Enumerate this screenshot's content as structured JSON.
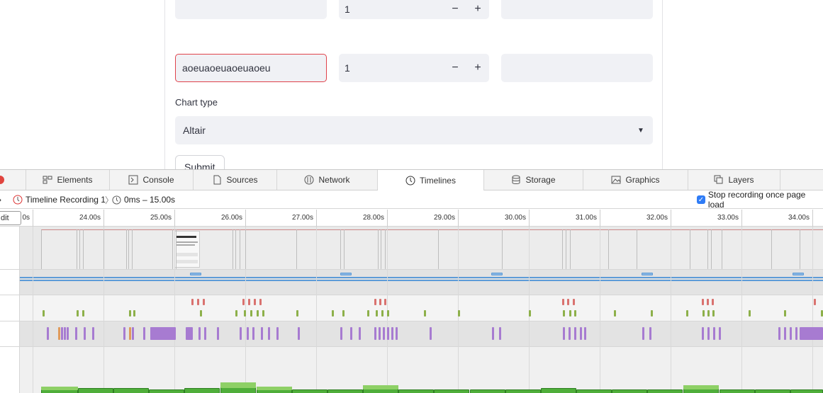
{
  "form": {
    "row1": {
      "text_value": "",
      "number": "1",
      "minus": "−",
      "plus": "+",
      "right_value": ""
    },
    "row2": {
      "text_value": "aoeuaoeuaoeuaoeu",
      "number": "1",
      "minus": "−",
      "plus": "+",
      "right_value": ""
    },
    "chart_type_label": "Chart type",
    "chart_type_value": "Altair",
    "submit_label": "Submit"
  },
  "devtools": {
    "tabs": [
      {
        "label": "Elements",
        "icon": "elements-icon"
      },
      {
        "label": "Console",
        "icon": "console-icon"
      },
      {
        "label": "Sources",
        "icon": "sources-icon"
      },
      {
        "label": "Network",
        "icon": "network-icon"
      },
      {
        "label": "Timelines",
        "icon": "clock-icon",
        "active": true
      },
      {
        "label": "Storage",
        "icon": "storage-icon"
      },
      {
        "label": "Graphics",
        "icon": "graphics-icon"
      },
      {
        "label": "Layers",
        "icon": "layers-icon"
      }
    ],
    "breadcrumb": {
      "recording": "Timeline Recording 1",
      "range": "0ms – 15.00s"
    },
    "stop_recording_label": "Stop recording once page load",
    "edit_label": "dit",
    "ruler": {
      "first_label": "0s",
      "labels": [
        "24.00s",
        "25.00s",
        "26.00s",
        "27.00s",
        "28.00s",
        "29.00s",
        "30.00s",
        "31.00s",
        "32.00s",
        "33.00s",
        "34.00s"
      ]
    },
    "colors": {
      "red": "#d9726f",
      "green": "#8db04a",
      "purple": "#a77bd1",
      "orange": "#e09a5b",
      "blue": "#5d9bd8",
      "bar_green": "#4fae3a"
    }
  }
}
